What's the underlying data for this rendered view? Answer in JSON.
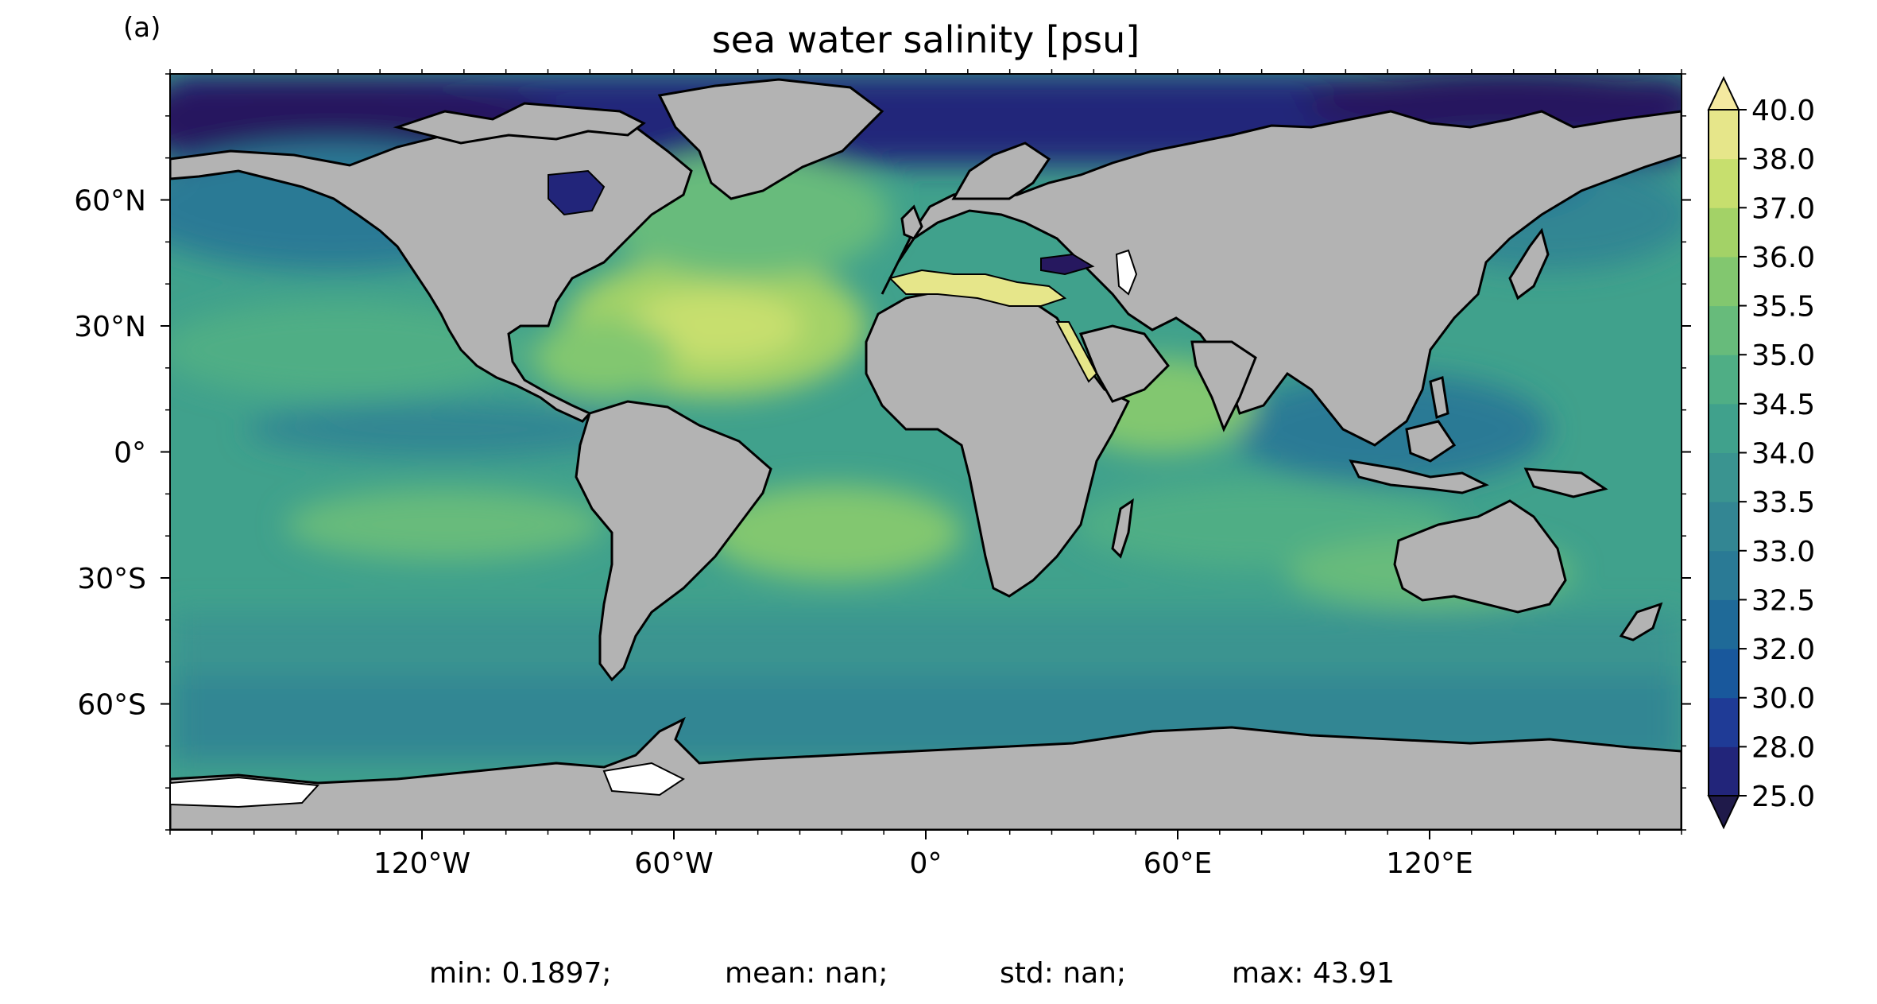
{
  "panel_label": "(a)",
  "title": "sea water salinity [psu]",
  "map": {
    "projection": "PlateCarree",
    "extent": {
      "lon": [
        -180,
        180
      ],
      "lat": [
        -90,
        90
      ]
    },
    "land_color": "#b3b3b3",
    "coastline_color": "#000000",
    "missing_color": "#ffffff"
  },
  "axes": {
    "x_ticks": [
      {
        "value": -120,
        "label": "120°W"
      },
      {
        "value": -60,
        "label": "60°W"
      },
      {
        "value": 0,
        "label": "0°"
      },
      {
        "value": 60,
        "label": "60°E"
      },
      {
        "value": 120,
        "label": "120°E"
      }
    ],
    "y_ticks": [
      {
        "value": 60,
        "label": "60°N"
      },
      {
        "value": 30,
        "label": "30°N"
      },
      {
        "value": 0,
        "label": "0°"
      },
      {
        "value": -30,
        "label": "30°S"
      },
      {
        "value": -60,
        "label": "60°S"
      }
    ]
  },
  "colorbar": {
    "extend": "both",
    "levels": [
      "25.0",
      "28.0",
      "30.0",
      "32.0",
      "32.5",
      "33.0",
      "33.5",
      "34.0",
      "34.5",
      "35.0",
      "35.5",
      "36.0",
      "37.0",
      "38.0",
      "40.0"
    ],
    "colors": [
      "#26185f",
      "#22257a",
      "#1f3b96",
      "#19589c",
      "#1f6a98",
      "#2a7a95",
      "#338693",
      "#3a9490",
      "#40a18c",
      "#4fae85",
      "#67bb7b",
      "#82c76f",
      "#a3d267",
      "#c7df6e",
      "#e6e68a"
    ],
    "under_color": "#1f1a4a",
    "over_color": "#f4e9a0"
  },
  "stats": {
    "min": "min: 0.1897;",
    "mean": "mean: nan;",
    "std": "std: nan;",
    "max": "max: 43.91"
  }
}
